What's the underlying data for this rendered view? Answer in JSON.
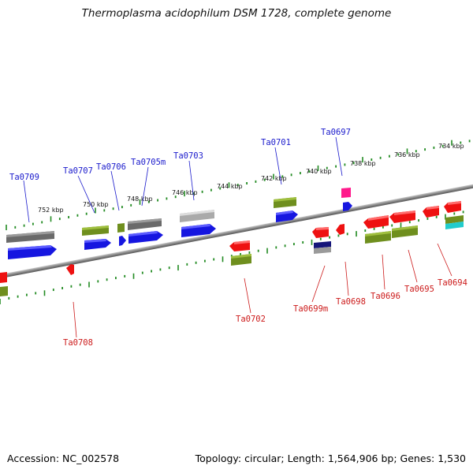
{
  "title": "Thermoplasma acidophilum DSM 1728, complete genome",
  "footer": {
    "accession": "Accession: NC_002578",
    "topology": "Topology: circular; Length: 1,564,906 bp; Genes: 1,530"
  },
  "colors": {
    "cds_forward": "#1616e0",
    "cds_reverse": "#ee1111",
    "gene": "#6f8f1e",
    "pseudogene": "#7a7a7a",
    "rna": "#aaaaaa",
    "trna": "#ff1a8c",
    "misc": "#22cccc",
    "backbone": "#777777",
    "tick": "#228B22",
    "label_forward": "#1a1acc",
    "label_reverse": "#cc1a1a"
  },
  "scale_labels": [
    "752 kbp",
    "750 kbp",
    "748 kbp",
    "746 kbp",
    "744 kbp",
    "742 kbp",
    "740 kbp",
    "738 kbp",
    "736 kbp",
    "734 kbp"
  ],
  "forward_genes": [
    "Ta0709",
    "Ta0707",
    "Ta0706",
    "Ta0705m",
    "Ta0703",
    "Ta0701",
    "Ta0697"
  ],
  "reverse_genes": [
    "Ta0708",
    "Ta0702",
    "Ta0699m",
    "Ta0698",
    "Ta0696",
    "Ta0695",
    "Ta0694"
  ]
}
